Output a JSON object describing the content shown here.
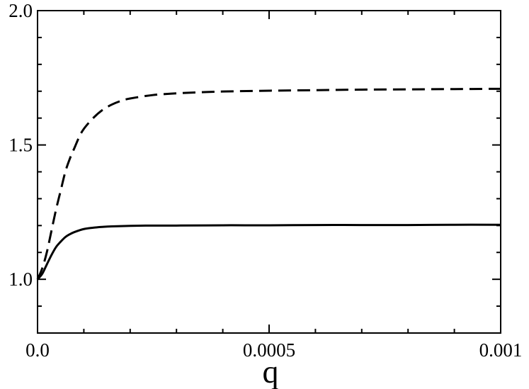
{
  "chart_data": {
    "type": "line",
    "title": "",
    "xlabel": "q",
    "ylabel": "",
    "xlim": [
      0,
      0.001
    ],
    "ylim": [
      0.8,
      2.0
    ],
    "grid": false,
    "legend": "none",
    "x_ticks": [
      {
        "value": 0,
        "label": "0.0"
      },
      {
        "value": 0.0005,
        "label": "0.0005"
      },
      {
        "value": 0.001,
        "label": "0.001"
      }
    ],
    "x_minor_ticks": [
      0.0001,
      0.0002,
      0.0003,
      0.0004,
      0.0006,
      0.0007,
      0.0008,
      0.0009
    ],
    "y_ticks": [
      {
        "value": 1.0,
        "label": "1.0"
      },
      {
        "value": 1.5,
        "label": "1.5"
      },
      {
        "value": 2.0,
        "label": "2.0"
      }
    ],
    "y_minor_ticks": [
      0.9,
      1.1,
      1.2,
      1.3,
      1.4,
      1.6,
      1.7,
      1.8,
      1.9
    ],
    "series": [
      {
        "style": "dashed",
        "color": "#000000",
        "x": [
          0,
          1e-05,
          2e-05,
          3e-05,
          4e-05,
          5e-05,
          6e-05,
          7e-05,
          8e-05,
          9e-05,
          0.0001,
          0.00012,
          0.00014,
          0.00016,
          0.00018,
          0.0002,
          0.00025,
          0.0003,
          0.00035,
          0.0004,
          0.0005,
          0.0006,
          0.0007,
          0.0008,
          0.0009,
          0.001
        ],
        "y": [
          1.0,
          1.04,
          1.1,
          1.18,
          1.26,
          1.33,
          1.4,
          1.45,
          1.49,
          1.53,
          1.56,
          1.6,
          1.63,
          1.65,
          1.664,
          1.673,
          1.686,
          1.692,
          1.696,
          1.699,
          1.702,
          1.704,
          1.706,
          1.707,
          1.708,
          1.709
        ]
      },
      {
        "style": "solid",
        "color": "#000000",
        "x": [
          0,
          1e-05,
          2e-05,
          3e-05,
          4e-05,
          5e-05,
          6e-05,
          7e-05,
          8e-05,
          0.0001,
          0.00012,
          0.00014,
          0.00016,
          0.0002,
          0.00025,
          0.0003,
          0.0004,
          0.0005,
          0.0006,
          0.0007,
          0.0008,
          0.0009,
          0.001
        ],
        "y": [
          1.0,
          1.02,
          1.055,
          1.09,
          1.12,
          1.14,
          1.157,
          1.168,
          1.176,
          1.187,
          1.192,
          1.195,
          1.197,
          1.199,
          1.2,
          1.2,
          1.201,
          1.201,
          1.202,
          1.202,
          1.202,
          1.203,
          1.203
        ]
      }
    ]
  }
}
